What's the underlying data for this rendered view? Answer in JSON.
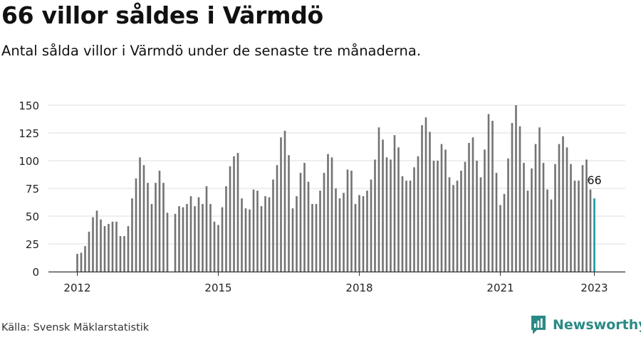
{
  "header": {
    "title": "66 villor såldes i Värmdö",
    "subtitle": "Antal sålda villor i Värmdö under de senaste tre månaderna."
  },
  "footer": {
    "source": "Källa: Svensk Mäklarstatistik",
    "brand": "Newsworthy",
    "brand_icon": "newsworthy-logo-icon"
  },
  "colors": {
    "bar": "#737373",
    "highlight": "#1a9aa0",
    "grid": "#dcdcdc",
    "axis": "#333333",
    "brand": "#2a8a84"
  },
  "chart_data": {
    "type": "bar",
    "title": "Antal sålda villor i Värmdö",
    "xlabel": "",
    "ylabel": "",
    "ylim": [
      0,
      150
    ],
    "yticks": [
      0,
      25,
      50,
      75,
      100,
      125,
      150
    ],
    "x_start": "2012-01",
    "xtick_labels": [
      {
        "label": "2012",
        "month_index": 0
      },
      {
        "label": "2015",
        "month_index": 36
      },
      {
        "label": "2018",
        "month_index": 72
      },
      {
        "label": "2021",
        "month_index": 108
      },
      {
        "label": "2023",
        "month_index": 132
      }
    ],
    "values": [
      16,
      17,
      23,
      36,
      49,
      55,
      47,
      41,
      43,
      45,
      45,
      32,
      32,
      41,
      66,
      84,
      103,
      96,
      80,
      61,
      80,
      91,
      80,
      53,
      0,
      52,
      59,
      58,
      61,
      68,
      59,
      67,
      61,
      77,
      61,
      45,
      42,
      58,
      77,
      95,
      104,
      107,
      66,
      57,
      56,
      74,
      73,
      59,
      68,
      67,
      83,
      96,
      121,
      127,
      105,
      57,
      68,
      89,
      98,
      81,
      61,
      61,
      73,
      89,
      106,
      103,
      75,
      66,
      71,
      92,
      91,
      61,
      69,
      68,
      73,
      83,
      101,
      130,
      119,
      103,
      101,
      123,
      112,
      86,
      82,
      82,
      94,
      104,
      132,
      139,
      126,
      100,
      100,
      115,
      110,
      85,
      78,
      82,
      91,
      99,
      116,
      121,
      100,
      85,
      110,
      142,
      136,
      89,
      60,
      70,
      102,
      134,
      150,
      131,
      98,
      73,
      93,
      115,
      130,
      98,
      74,
      65,
      97,
      115,
      122,
      112,
      97,
      82,
      82,
      96,
      101,
      74,
      66
    ],
    "highlight_last": true,
    "annotation": {
      "text": "66",
      "month_index": 132
    }
  }
}
